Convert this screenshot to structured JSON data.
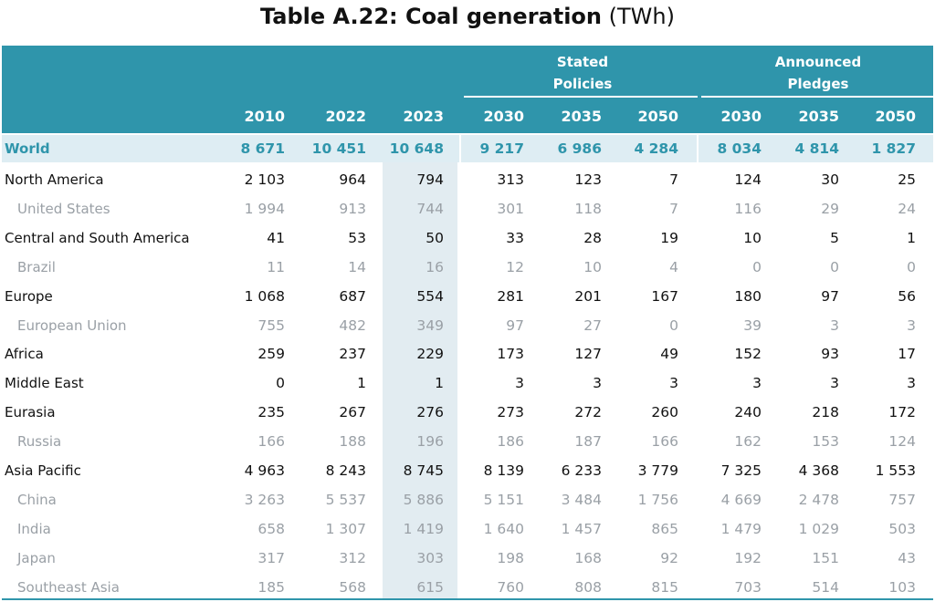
{
  "title": {
    "bold": "Table A.22: Coal generation",
    "unit": "(TWh)"
  },
  "header": {
    "groups": [
      "Stated\nPolicies",
      "Announced\nPledges"
    ],
    "years": [
      "2010",
      "2022",
      "2023",
      "2030",
      "2035",
      "2050",
      "2030",
      "2035",
      "2050"
    ]
  },
  "rows": [
    {
      "label": "World",
      "kind": "world",
      "values": [
        "8 671",
        "10 451",
        "10 648",
        "9 217",
        "6 986",
        "4 284",
        "8 034",
        "4 814",
        "1 827"
      ]
    },
    {
      "label": "North America",
      "kind": "main",
      "values": [
        "2 103",
        "964",
        "794",
        "313",
        "123",
        "7",
        "124",
        "30",
        "25"
      ]
    },
    {
      "label": "United States",
      "kind": "sub",
      "values": [
        "1 994",
        "913",
        "744",
        "301",
        "118",
        "7",
        "116",
        "29",
        "24"
      ]
    },
    {
      "label": "Central and South America",
      "kind": "main",
      "values": [
        "41",
        "53",
        "50",
        "33",
        "28",
        "19",
        "10",
        "5",
        "1"
      ]
    },
    {
      "label": "Brazil",
      "kind": "sub",
      "values": [
        "11",
        "14",
        "16",
        "12",
        "10",
        "4",
        "0",
        "0",
        "0"
      ]
    },
    {
      "label": "Europe",
      "kind": "main",
      "values": [
        "1 068",
        "687",
        "554",
        "281",
        "201",
        "167",
        "180",
        "97",
        "56"
      ]
    },
    {
      "label": "European Union",
      "kind": "sub",
      "values": [
        "755",
        "482",
        "349",
        "97",
        "27",
        "0",
        "39",
        "3",
        "3"
      ]
    },
    {
      "label": "Africa",
      "kind": "main",
      "values": [
        "259",
        "237",
        "229",
        "173",
        "127",
        "49",
        "152",
        "93",
        "17"
      ]
    },
    {
      "label": "Middle East",
      "kind": "main",
      "values": [
        "0",
        "1",
        "1",
        "3",
        "3",
        "3",
        "3",
        "3",
        "3"
      ]
    },
    {
      "label": "Eurasia",
      "kind": "main",
      "values": [
        "235",
        "267",
        "276",
        "273",
        "272",
        "260",
        "240",
        "218",
        "172"
      ]
    },
    {
      "label": "Russia",
      "kind": "sub",
      "values": [
        "166",
        "188",
        "196",
        "186",
        "187",
        "166",
        "162",
        "153",
        "124"
      ]
    },
    {
      "label": "Asia Pacific",
      "kind": "main",
      "values": [
        "4 963",
        "8 243",
        "8 745",
        "8 139",
        "6 233",
        "3 779",
        "7 325",
        "4 368",
        "1 553"
      ]
    },
    {
      "label": "China",
      "kind": "sub",
      "values": [
        "3 263",
        "5 537",
        "5 886",
        "5 151",
        "3 484",
        "1 756",
        "4 669",
        "2 478",
        "757"
      ]
    },
    {
      "label": "India",
      "kind": "sub",
      "values": [
        "658",
        "1 307",
        "1 419",
        "1 640",
        "1 457",
        "865",
        "1 479",
        "1 029",
        "503"
      ]
    },
    {
      "label": "Japan",
      "kind": "sub",
      "values": [
        "317",
        "312",
        "303",
        "198",
        "168",
        "92",
        "192",
        "151",
        "43"
      ]
    },
    {
      "label": "Southeast Asia",
      "kind": "sub",
      "values": [
        "185",
        "568",
        "615",
        "760",
        "808",
        "815",
        "703",
        "514",
        "103"
      ]
    }
  ]
}
